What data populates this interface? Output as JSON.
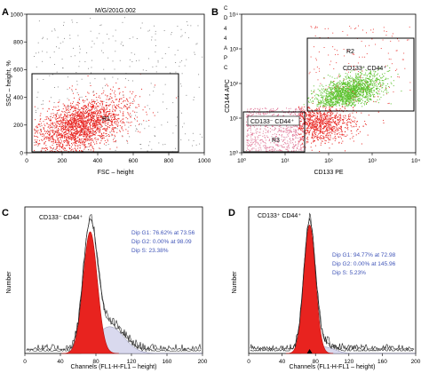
{
  "colors": {
    "red": "#e8231f",
    "dark_red": "#b50f0c",
    "pink": "#e07a9a",
    "green": "#5cc22e",
    "lavender": "#d9d9ee",
    "blue_text": "#4055b8",
    "grey_dots": "#777777",
    "line": "#000000"
  },
  "panels": {
    "A": {
      "letter": "A",
      "header": "M/G/201G.002",
      "gate": "R1"
    },
    "B": {
      "letter": "B",
      "side_letters": [
        "C",
        "D",
        "4",
        "4",
        "A",
        "P",
        "C"
      ],
      "gate_top": "R2",
      "gate_top_label": "CD133⁺ CD44⁺",
      "gate_bottom": "R3",
      "gate_bottom_label": "CD133⁻ CD44⁺"
    },
    "C": {
      "letter": "C",
      "title": "CD133⁻ CD44⁺",
      "dip_lines": [
        "Dip G1: 76.62% at 73.56",
        "Dip G2: 0.00% at 98.09",
        "Dip S: 23.38%"
      ]
    },
    "D": {
      "letter": "D",
      "title": "CD133⁺ CD44⁺",
      "dip_lines": [
        "Dip G1: 94.77% at 72.98",
        "Dip G2: 0.00% at 145.96",
        "Dip S: 5.23%"
      ]
    }
  },
  "chart_data": [
    {
      "type": "scatter",
      "panel": "A",
      "title": "M/G/201G.002",
      "xlabel": "FSC – height",
      "ylabel": "SSC – height, %",
      "xlim": [
        0,
        1000
      ],
      "ylim": [
        0,
        1000
      ],
      "xticks": [
        0,
        200,
        400,
        600,
        800,
        1000
      ],
      "yticks": [
        0,
        200,
        400,
        600,
        800,
        1000
      ],
      "gates": [
        {
          "name": "R1",
          "x": [
            30,
            870
          ],
          "y": [
            5,
            620
          ]
        }
      ],
      "series": [
        {
          "color": "#e8231f",
          "density_center": [
            300,
            200
          ],
          "spread": [
            130,
            90
          ]
        },
        {
          "color": "#777777",
          "sparse": true
        }
      ]
    },
    {
      "type": "scatter",
      "panel": "B",
      "xlabel": "CD133 PE",
      "ylabel": "CD144 APC",
      "xscale": "log",
      "yscale": "log",
      "xlim": [
        1,
        10000
      ],
      "ylim": [
        1,
        10000
      ],
      "xticks": [
        "10⁰",
        "10¹",
        "10²",
        "10³",
        "10⁴"
      ],
      "yticks": [
        "10⁰",
        "10¹",
        "10²",
        "10³",
        "10⁴"
      ],
      "gates": [
        {
          "name": "R2",
          "x": [
            30,
            9000
          ],
          "y": [
            25,
            1500
          ]
        },
        {
          "name": "R3",
          "x": [
            1,
            30
          ],
          "y": [
            1,
            22
          ]
        }
      ],
      "series": [
        {
          "color": "#5cc22e",
          "density_center": [
            300,
            60
          ]
        },
        {
          "color": "#e8231f",
          "density_center": [
            60,
            8
          ]
        },
        {
          "color": "#e07a9a",
          "density_center": [
            6,
            5
          ]
        }
      ]
    },
    {
      "type": "area",
      "panel": "C",
      "title": "CD133⁻ CD44⁺",
      "xlabel": "Channels (FL1-H-FL1 – height)",
      "ylabel": "Number",
      "xlim": [
        0,
        200
      ],
      "xticks": [
        0,
        40,
        80,
        120,
        160,
        200
      ],
      "series": [
        {
          "name": "Dip G1",
          "peak": 73.56,
          "percent": 76.62
        },
        {
          "name": "Dip G2",
          "peak": 98.09,
          "percent": 0.0
        },
        {
          "name": "Dip S",
          "percent": 23.38
        }
      ]
    },
    {
      "type": "area",
      "panel": "D",
      "title": "CD133⁺ CD44⁺",
      "xlabel": "Channels (FL1-H-FL1 – height)",
      "ylabel": "Number",
      "xlim": [
        0,
        200
      ],
      "xticks": [
        0,
        40,
        80,
        120,
        160,
        200
      ],
      "series": [
        {
          "name": "Dip G1",
          "peak": 72.98,
          "percent": 94.77
        },
        {
          "name": "Dip G2",
          "peak": 145.96,
          "percent": 0.0
        },
        {
          "name": "Dip S",
          "percent": 5.23
        }
      ]
    }
  ]
}
